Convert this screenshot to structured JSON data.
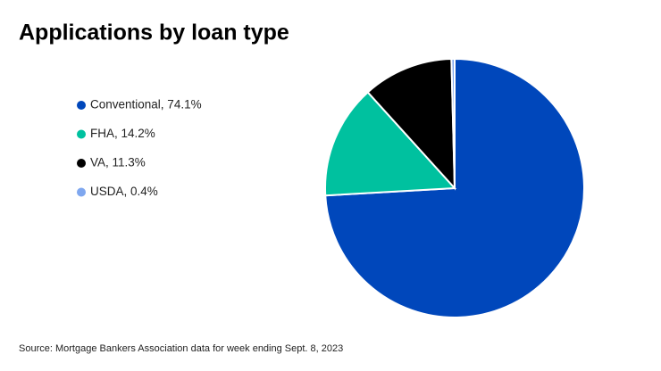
{
  "chart_data": {
    "type": "pie",
    "title": "Applications by loan type",
    "categories": [
      "Conventional, 74.1%",
      "FHA, 14.2%",
      "VA, 11.3%",
      "USDA, 0.4%"
    ],
    "values": [
      74.1,
      14.2,
      11.3,
      0.4
    ],
    "colors": [
      "#0047bb",
      "#00c19f",
      "#000000",
      "#7fa7ef"
    ],
    "source": "Source: Mortgage Bankers Association data for week ending Sept. 8, 2023"
  }
}
